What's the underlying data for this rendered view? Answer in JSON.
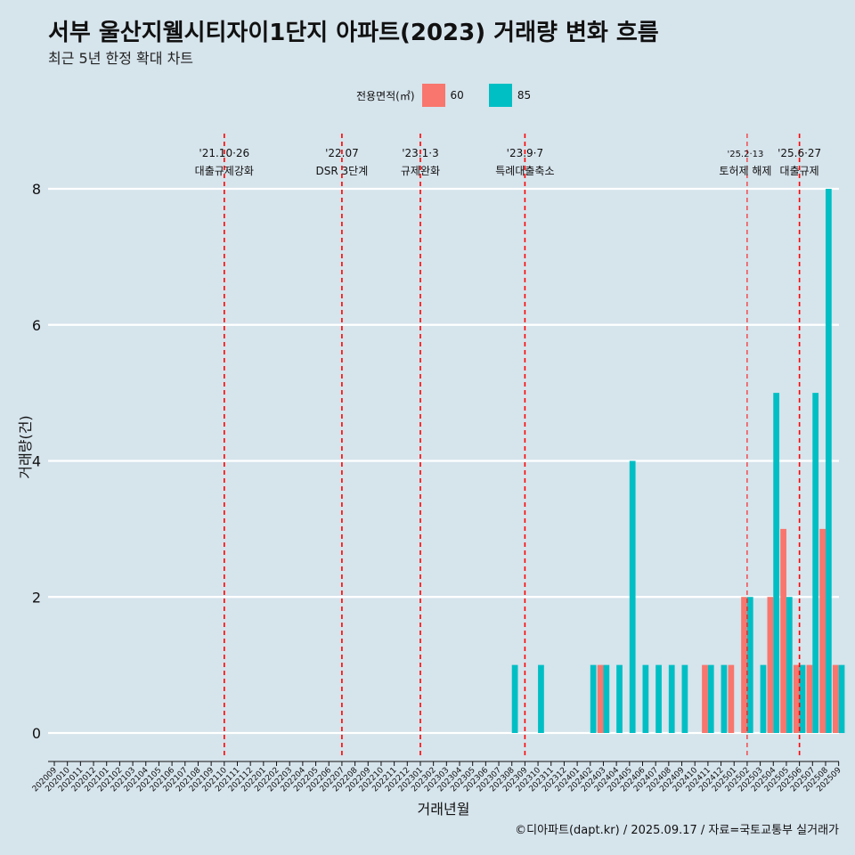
{
  "title": "서부 울산지웰시티자이1단지 아파트(2023) 거래량 변화 흐름",
  "subtitle": "최근 5년 한정 확대 차트",
  "caption": "©디아파트(dapt.kr) / 2025.09.17 / 자료=국토교통부 실거래가",
  "colors": {
    "s60": "#f8766d",
    "s85": "#00bfc4",
    "background": "#d6e4ec",
    "event_line": "#ff0000"
  },
  "chart_data": {
    "type": "bar",
    "xlabel": "거래년월",
    "ylabel": "거래량(건)",
    "ylim": [
      0,
      8
    ],
    "yticks": [
      0,
      2,
      4,
      6,
      8
    ],
    "grid": true,
    "legend": {
      "title": "전용면적(㎡)",
      "position": "top"
    },
    "categories": [
      "202009",
      "202010",
      "202011",
      "202012",
      "202101",
      "202102",
      "202103",
      "202104",
      "202105",
      "202106",
      "202107",
      "202108",
      "202109",
      "202110",
      "202111",
      "202112",
      "202201",
      "202202",
      "202203",
      "202204",
      "202205",
      "202206",
      "202207",
      "202208",
      "202209",
      "202210",
      "202211",
      "202212",
      "202301",
      "202302",
      "202303",
      "202304",
      "202305",
      "202306",
      "202307",
      "202308",
      "202309",
      "202310",
      "202311",
      "202312",
      "202401",
      "202402",
      "202403",
      "202404",
      "202405",
      "202406",
      "202407",
      "202408",
      "202409",
      "202410",
      "202411",
      "202412",
      "202501",
      "202502",
      "202503",
      "202504",
      "202505",
      "202506",
      "202507",
      "202508",
      "202509"
    ],
    "series": [
      {
        "name": "60",
        "values": [
          0,
          0,
          0,
          0,
          0,
          0,
          0,
          0,
          0,
          0,
          0,
          0,
          0,
          0,
          0,
          0,
          0,
          0,
          0,
          0,
          0,
          0,
          0,
          0,
          0,
          0,
          0,
          0,
          0,
          0,
          0,
          0,
          0,
          0,
          0,
          0,
          0,
          0,
          0,
          0,
          0,
          0,
          1,
          0,
          0,
          0,
          0,
          0,
          0,
          0,
          1,
          0,
          1,
          2,
          0,
          2,
          3,
          1,
          1,
          3,
          1
        ]
      },
      {
        "name": "85",
        "values": [
          0,
          0,
          0,
          0,
          0,
          0,
          0,
          0,
          0,
          0,
          0,
          0,
          0,
          0,
          0,
          0,
          0,
          0,
          0,
          0,
          0,
          0,
          0,
          0,
          0,
          0,
          0,
          0,
          0,
          0,
          0,
          0,
          0,
          0,
          0,
          1,
          0,
          1,
          0,
          0,
          0,
          1,
          1,
          1,
          4,
          1,
          1,
          1,
          1,
          0,
          1,
          1,
          0,
          2,
          1,
          5,
          2,
          1,
          5,
          8,
          1
        ]
      }
    ],
    "events": [
      {
        "month": "202110",
        "date": "'21.10·26",
        "label": "대출규제강화"
      },
      {
        "month": "202207",
        "date": "'22.07",
        "label": "DSR 3단계"
      },
      {
        "month": "202301",
        "date": "'23.1·3",
        "label": "규제완화"
      },
      {
        "month": "202309",
        "date": "'23.9·7",
        "label": "특례대출축소"
      },
      {
        "month": "202502",
        "date": "'25.2·13",
        "label": "토허제 해제"
      },
      {
        "month": "202506",
        "date": "'25.6·27",
        "label": "대출규제"
      }
    ]
  }
}
